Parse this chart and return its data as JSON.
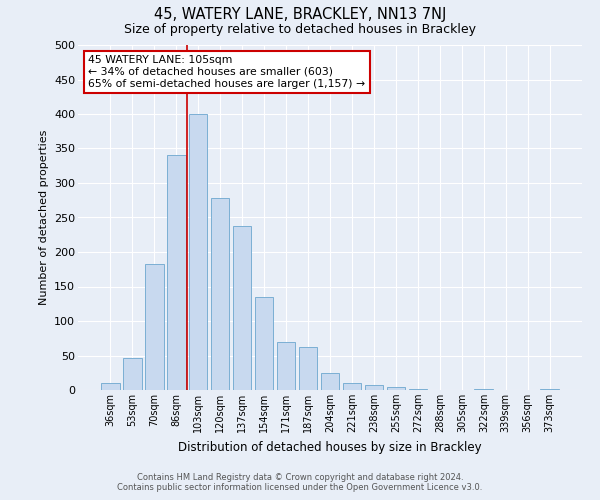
{
  "title": "45, WATERY LANE, BRACKLEY, NN13 7NJ",
  "subtitle": "Size of property relative to detached houses in Brackley",
  "xlabel": "Distribution of detached houses by size in Brackley",
  "ylabel": "Number of detached properties",
  "bin_labels": [
    "36sqm",
    "53sqm",
    "70sqm",
    "86sqm",
    "103sqm",
    "120sqm",
    "137sqm",
    "154sqm",
    "171sqm",
    "187sqm",
    "204sqm",
    "221sqm",
    "238sqm",
    "255sqm",
    "272sqm",
    "288sqm",
    "305sqm",
    "322sqm",
    "339sqm",
    "356sqm",
    "373sqm"
  ],
  "bar_values": [
    10,
    47,
    183,
    340,
    400,
    278,
    238,
    135,
    70,
    62,
    25,
    10,
    7,
    5,
    2,
    0,
    0,
    2,
    0,
    0,
    2
  ],
  "bar_color": "#c8d9ef",
  "bar_edge_color": "#7bafd4",
  "vline_x_index": 4,
  "vline_color": "#cc0000",
  "annotation_line1": "45 WATERY LANE: 105sqm",
  "annotation_line2": "← 34% of detached houses are smaller (603)",
  "annotation_line3": "65% of semi-detached houses are larger (1,157) →",
  "annotation_box_facecolor": "#ffffff",
  "annotation_box_edgecolor": "#cc0000",
  "ylim": [
    0,
    500
  ],
  "yticks": [
    0,
    50,
    100,
    150,
    200,
    250,
    300,
    350,
    400,
    450,
    500
  ],
  "background_color": "#e8eef7",
  "grid_color": "#ffffff",
  "footer_line1": "Contains HM Land Registry data © Crown copyright and database right 2024.",
  "footer_line2": "Contains public sector information licensed under the Open Government Licence v3.0."
}
